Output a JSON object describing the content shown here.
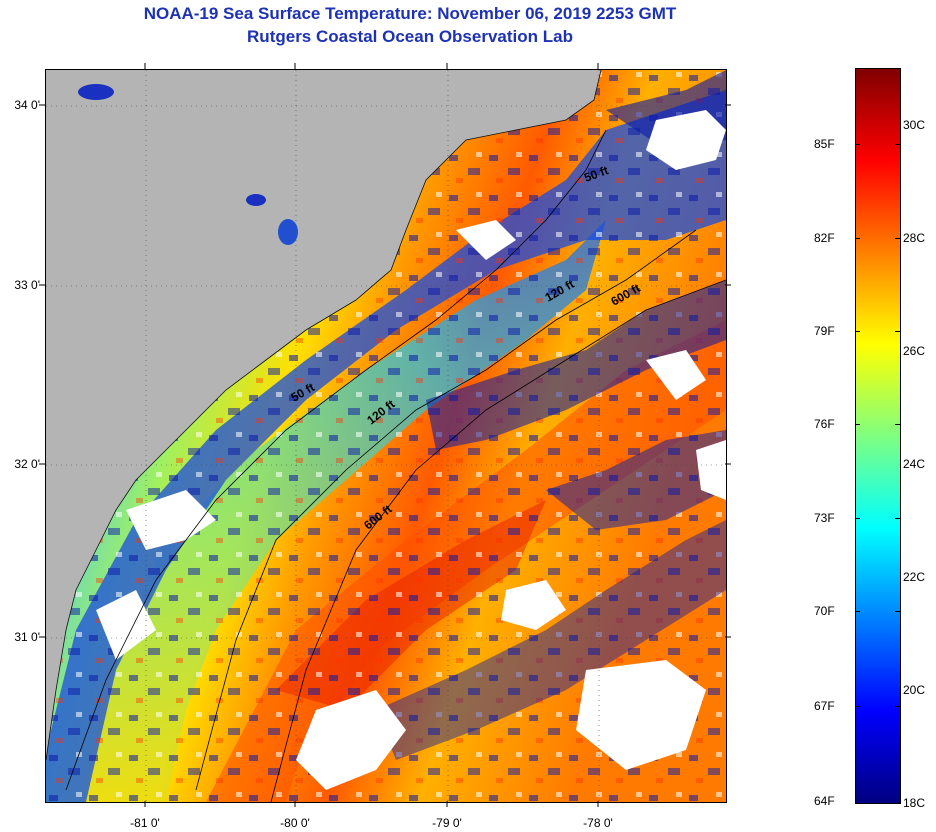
{
  "header": {
    "title": "NOAA-19 Sea Surface Temperature:  November 06, 2019 2253 GMT",
    "subtitle": "Rutgers Coastal Ocean Observation Lab"
  },
  "map": {
    "lat_labels": [
      "34 0'",
      "33 0'",
      "32 0'",
      "31 0'"
    ],
    "lon_labels": [
      "-81 0'",
      "-80 0'",
      "-79 0'",
      "-78 0'"
    ],
    "contour_labels": [
      "50 ft",
      "50 ft",
      "120 ft",
      "120 ft",
      "600 ft",
      "600 ft"
    ],
    "colors": {
      "land": "#b4b4b4",
      "cloud": "#ffffff",
      "cold": "#0a1aa0",
      "warm": "#ff3c00"
    }
  },
  "colorbar": {
    "fahrenheit_labels": [
      "85F",
      "82F",
      "79F",
      "76F",
      "73F",
      "70F",
      "67F",
      "64F"
    ],
    "celsius_labels": [
      "30C",
      "28C",
      "26C",
      "24C",
      "22C",
      "20C",
      "18C"
    ],
    "gradient": [
      "#000080",
      "#0000ff",
      "#0080ff",
      "#00ffff",
      "#80ff80",
      "#ffff00",
      "#ff8000",
      "#ff0000",
      "#800000"
    ]
  }
}
